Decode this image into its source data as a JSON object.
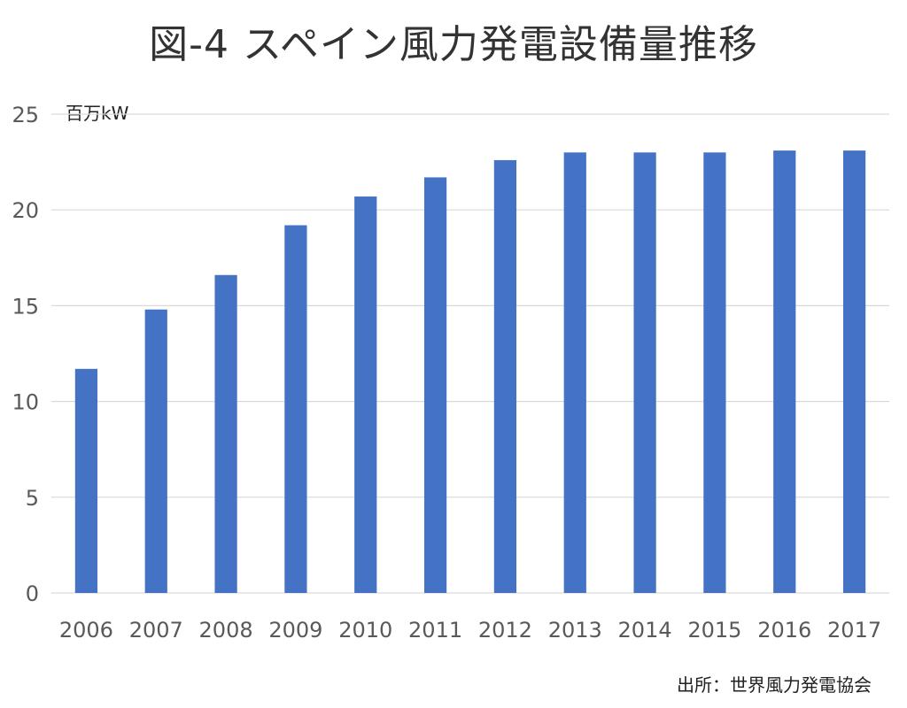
{
  "chart_data": {
    "type": "bar",
    "title": "図-4 スペイン風力発電設備量推移",
    "unit_label": "百万kW",
    "source": "出所：世界風力発電協会",
    "categories": [
      "2006",
      "2007",
      "2008",
      "2009",
      "2010",
      "2011",
      "2012",
      "2013",
      "2014",
      "2015",
      "2016",
      "2017"
    ],
    "values": [
      11.7,
      14.8,
      16.6,
      19.2,
      20.7,
      21.7,
      22.6,
      23.0,
      23.0,
      23.0,
      23.1,
      23.1
    ],
    "ylim": [
      0,
      25
    ],
    "yticks": [
      0,
      5,
      10,
      15,
      20,
      25
    ],
    "grid": true,
    "legend": "none",
    "bar_color": "#4472C4",
    "grid_color": "#D9D9D9"
  }
}
